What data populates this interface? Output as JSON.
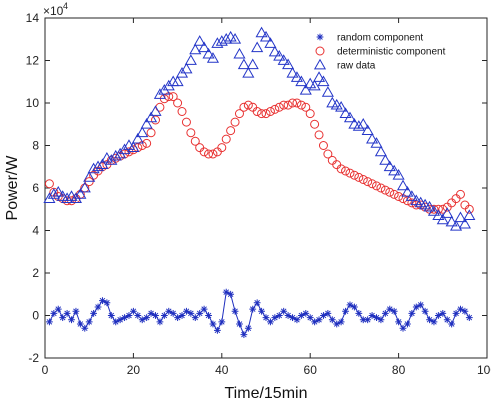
{
  "chart_data": {
    "type": "scatter",
    "xlabel": "Time/15min",
    "ylabel": "Power/W",
    "y_multiplier_label": "×10",
    "y_multiplier_exponent": "4",
    "xlim": [
      0,
      100
    ],
    "ylim": [
      -2,
      14
    ],
    "xticks": [
      0,
      20,
      40,
      60,
      80,
      100
    ],
    "yticks": [
      -2,
      0,
      2,
      4,
      6,
      8,
      10,
      12,
      14
    ],
    "grid": false,
    "legend_position": "top-right",
    "series": [
      {
        "name": "random component",
        "marker": "asterisk",
        "color": "#1f2fbf",
        "x": [
          1,
          2,
          3,
          4,
          5,
          6,
          7,
          8,
          9,
          10,
          11,
          12,
          13,
          14,
          15,
          16,
          17,
          18,
          19,
          20,
          21,
          22,
          23,
          24,
          25,
          26,
          27,
          28,
          29,
          30,
          31,
          32,
          33,
          34,
          35,
          36,
          37,
          38,
          39,
          40,
          41,
          42,
          43,
          44,
          45,
          46,
          47,
          48,
          49,
          50,
          51,
          52,
          53,
          54,
          55,
          56,
          57,
          58,
          59,
          60,
          61,
          62,
          63,
          64,
          65,
          66,
          67,
          68,
          69,
          70,
          71,
          72,
          73,
          74,
          75,
          76,
          77,
          78,
          79,
          80,
          81,
          82,
          83,
          84,
          85,
          86,
          87,
          88,
          89,
          90,
          91,
          92,
          93,
          94,
          95,
          96
        ],
        "y": [
          -0.3,
          0.1,
          0.3,
          -0.1,
          0.1,
          -0.2,
          0.2,
          -0.4,
          -0.6,
          -0.3,
          0.1,
          0.4,
          0.7,
          0.6,
          0.0,
          -0.3,
          -0.2,
          -0.1,
          0.0,
          0.2,
          0.0,
          -0.2,
          -0.1,
          0.1,
          0.0,
          -0.3,
          0.0,
          0.2,
          0.1,
          -0.1,
          0.0,
          0.2,
          0.1,
          -0.1,
          0.1,
          0.3,
          0.0,
          -0.4,
          -0.7,
          -0.3,
          1.1,
          1.0,
          0.2,
          -0.4,
          -0.9,
          -0.6,
          0.3,
          0.6,
          0.2,
          -0.1,
          -0.3,
          -0.1,
          0.0,
          0.2,
          0.0,
          -0.1,
          -0.2,
          0.0,
          0.1,
          -0.1,
          -0.3,
          -0.2,
          0.0,
          0.1,
          -0.2,
          -0.4,
          -0.3,
          0.2,
          0.5,
          0.4,
          0.1,
          -0.2,
          -0.2,
          0.0,
          -0.1,
          -0.2,
          0.1,
          0.3,
          0.2,
          -0.3,
          -0.6,
          -0.4,
          0.1,
          0.4,
          0.5,
          0.2,
          -0.2,
          -0.3,
          0.0,
          0.1,
          -0.2,
          -0.4,
          0.1,
          0.3,
          0.2,
          -0.1
        ]
      },
      {
        "name": "deterministic component",
        "marker": "circle",
        "color": "#e83030",
        "x": [
          1,
          2,
          3,
          4,
          5,
          6,
          7,
          8,
          9,
          10,
          11,
          12,
          13,
          14,
          15,
          16,
          17,
          18,
          19,
          20,
          21,
          22,
          23,
          24,
          25,
          26,
          27,
          28,
          29,
          30,
          31,
          32,
          33,
          34,
          35,
          36,
          37,
          38,
          39,
          40,
          41,
          42,
          43,
          44,
          45,
          46,
          47,
          48,
          49,
          50,
          51,
          52,
          53,
          54,
          55,
          56,
          57,
          58,
          59,
          60,
          61,
          62,
          63,
          64,
          65,
          66,
          67,
          68,
          69,
          70,
          71,
          72,
          73,
          74,
          75,
          76,
          77,
          78,
          79,
          80,
          81,
          82,
          83,
          84,
          85,
          86,
          87,
          88,
          89,
          90,
          91,
          92,
          93,
          94,
          95,
          96
        ],
        "y": [
          6.2,
          5.8,
          5.6,
          5.5,
          5.4,
          5.4,
          5.5,
          5.7,
          6.0,
          6.3,
          6.6,
          6.8,
          7.0,
          7.1,
          7.3,
          7.4,
          7.5,
          7.6,
          7.7,
          7.8,
          7.9,
          8.0,
          8.1,
          8.6,
          9.2,
          9.8,
          10.2,
          10.3,
          10.3,
          10.0,
          9.6,
          9.1,
          8.6,
          8.2,
          7.9,
          7.7,
          7.6,
          7.6,
          7.7,
          7.9,
          8.3,
          8.7,
          9.1,
          9.5,
          9.8,
          9.9,
          9.8,
          9.6,
          9.5,
          9.5,
          9.6,
          9.7,
          9.8,
          9.9,
          9.9,
          10.0,
          10.0,
          9.9,
          9.8,
          9.5,
          9.0,
          8.5,
          8.0,
          7.6,
          7.3,
          7.1,
          6.9,
          6.8,
          6.7,
          6.6,
          6.5,
          6.4,
          6.3,
          6.2,
          6.1,
          6.0,
          5.9,
          5.8,
          5.7,
          5.6,
          5.5,
          5.4,
          5.3,
          5.2,
          5.2,
          5.1,
          5.0,
          5.0,
          5.0,
          5.0,
          5.1,
          5.3,
          5.5,
          5.7,
          5.2,
          5.0
        ]
      },
      {
        "name": "raw data",
        "marker": "triangle",
        "color": "#2436c8",
        "x": [
          1,
          2,
          3,
          4,
          5,
          6,
          7,
          8,
          9,
          10,
          11,
          12,
          13,
          14,
          15,
          16,
          17,
          18,
          19,
          20,
          21,
          22,
          23,
          24,
          25,
          26,
          27,
          28,
          29,
          30,
          31,
          32,
          33,
          34,
          35,
          36,
          37,
          38,
          39,
          40,
          41,
          42,
          43,
          44,
          45,
          46,
          47,
          48,
          49,
          50,
          51,
          52,
          53,
          54,
          55,
          56,
          57,
          58,
          59,
          60,
          61,
          62,
          63,
          64,
          65,
          66,
          67,
          68,
          69,
          70,
          71,
          72,
          73,
          74,
          75,
          76,
          77,
          78,
          79,
          80,
          81,
          82,
          83,
          84,
          85,
          86,
          87,
          88,
          89,
          90,
          91,
          92,
          93,
          94,
          95,
          96
        ],
        "y": [
          5.5,
          5.7,
          5.8,
          5.6,
          5.5,
          5.6,
          5.5,
          5.7,
          6.0,
          6.5,
          6.9,
          7.0,
          7.1,
          7.4,
          7.3,
          7.5,
          7.6,
          7.8,
          8.0,
          7.9,
          8.3,
          8.6,
          9.0,
          9.3,
          9.6,
          10.4,
          10.6,
          10.8,
          11.0,
          11.0,
          11.4,
          11.6,
          12.0,
          12.5,
          12.9,
          12.6,
          12.3,
          12.1,
          12.8,
          12.9,
          13.0,
          13.1,
          13.0,
          12.3,
          11.8,
          11.4,
          11.8,
          12.6,
          13.3,
          13.1,
          12.8,
          12.4,
          12.2,
          12.0,
          11.8,
          11.4,
          11.2,
          11.0,
          10.6,
          10.9,
          10.8,
          11.2,
          11.0,
          10.5,
          10.0,
          9.9,
          9.8,
          9.5,
          9.3,
          9.0,
          8.9,
          9.0,
          8.7,
          8.3,
          8.1,
          7.7,
          7.3,
          7.0,
          6.8,
          6.6,
          6.1,
          5.8,
          5.6,
          5.4,
          5.3,
          5.2,
          5.1,
          4.9,
          4.7,
          4.5,
          4.8,
          4.4,
          4.2,
          4.6,
          4.3,
          4.7
        ]
      }
    ]
  }
}
